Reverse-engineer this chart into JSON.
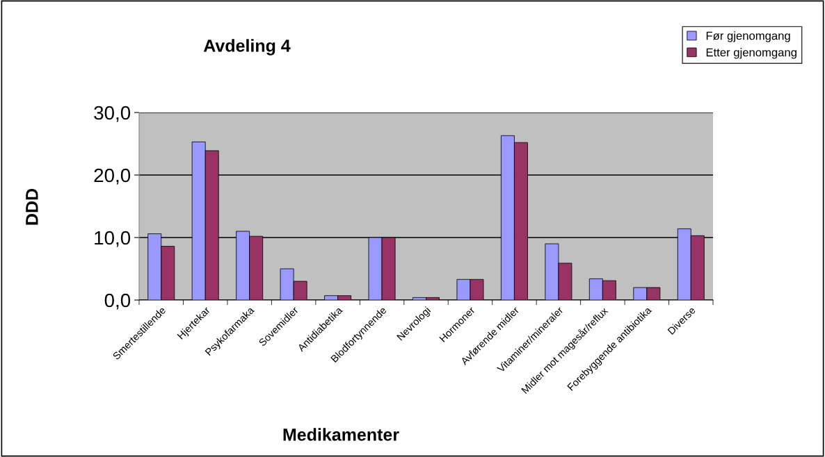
{
  "chart_data": {
    "type": "bar",
    "title": "Avdeling 4",
    "xlabel": "Medikamenter",
    "ylabel": "DDD",
    "categories": [
      "Smertestillende",
      "Hjertekar",
      "Psykofarmaka",
      "Sovemidler",
      "Antidiabetika",
      "Blodfortynnende",
      "Nevrologi",
      "Hormoner",
      "Avførende midler",
      "Vitaminer/mineraler",
      "Midler mot magesår/reflux",
      "Forebyggende antibiotika",
      "Diverse"
    ],
    "series": [
      {
        "name": "Før gjenomgang",
        "color": "#9999ff",
        "values": [
          10.6,
          25.3,
          11.0,
          5.0,
          0.7,
          10.0,
          0.4,
          3.3,
          26.3,
          9.0,
          3.4,
          2.0,
          11.4
        ]
      },
      {
        "name": "Etter gjenomgang",
        "color": "#993366",
        "values": [
          8.6,
          23.9,
          10.2,
          3.0,
          0.7,
          10.0,
          0.4,
          3.3,
          25.2,
          5.9,
          3.1,
          2.0,
          10.3
        ]
      }
    ],
    "ylim": [
      0,
      30
    ],
    "yticks": [
      {
        "value": 0,
        "label": "0,0"
      },
      {
        "value": 10,
        "label": "10,0"
      },
      {
        "value": 20,
        "label": "20,0"
      },
      {
        "value": 30,
        "label": "30,0"
      }
    ],
    "grid": "y",
    "legend": "top right"
  }
}
